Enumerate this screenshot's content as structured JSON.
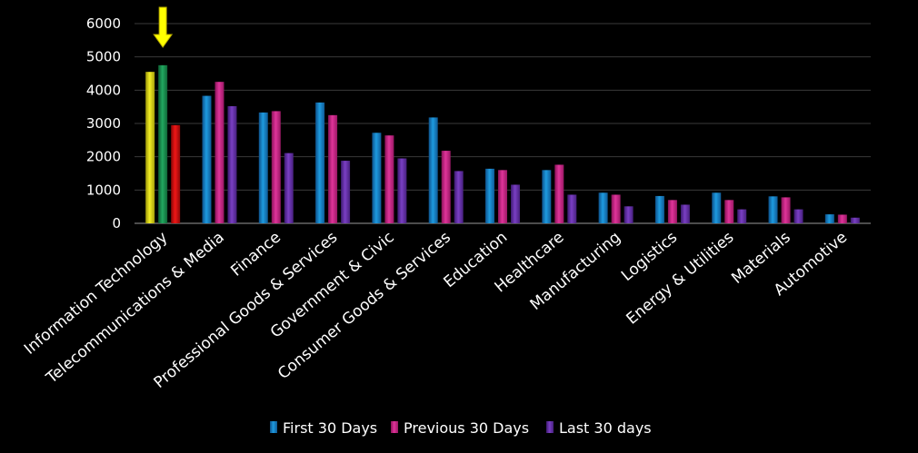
{
  "chart_data": {
    "type": "bar",
    "title": "",
    "xlabel": "",
    "ylabel": "",
    "ylim": [
      0,
      6000
    ],
    "yticks": [
      0,
      1000,
      2000,
      3000,
      4000,
      5000,
      6000
    ],
    "grid": true,
    "legend_position": "bottom",
    "categories": [
      "Information Technology",
      "Telecommunications & Media",
      "Finance",
      "Professional Goods & Services",
      "Government & Civic",
      "Consumer Goods &  Services",
      "Education",
      "Healthcare",
      "Manufacturing",
      "Logistics",
      "Energy & Utilities",
      "Materials",
      "Automotive"
    ],
    "series": [
      {
        "name": "First 30 Days",
        "color": "#1e9be0",
        "values": [
          4550,
          3830,
          3330,
          3630,
          2720,
          3180,
          1640,
          1600,
          920,
          820,
          920,
          810,
          270
        ]
      },
      {
        "name": "Previous 30 Days",
        "color": "#e0349a",
        "values": [
          4750,
          4250,
          3370,
          3250,
          2640,
          2180,
          1600,
          1760,
          860,
          700,
          700,
          780,
          260
        ]
      },
      {
        "name": "Last 30 days",
        "color": "#7a3fc4",
        "values": [
          2950,
          3520,
          2110,
          1880,
          1950,
          1570,
          1160,
          860,
          510,
          560,
          420,
          420,
          170
        ]
      }
    ],
    "highlight": {
      "category_index": 0,
      "colors": [
        "#e6e21a",
        "#1e9e57",
        "#e01010"
      ],
      "arrow_color": "#ffff00"
    }
  }
}
